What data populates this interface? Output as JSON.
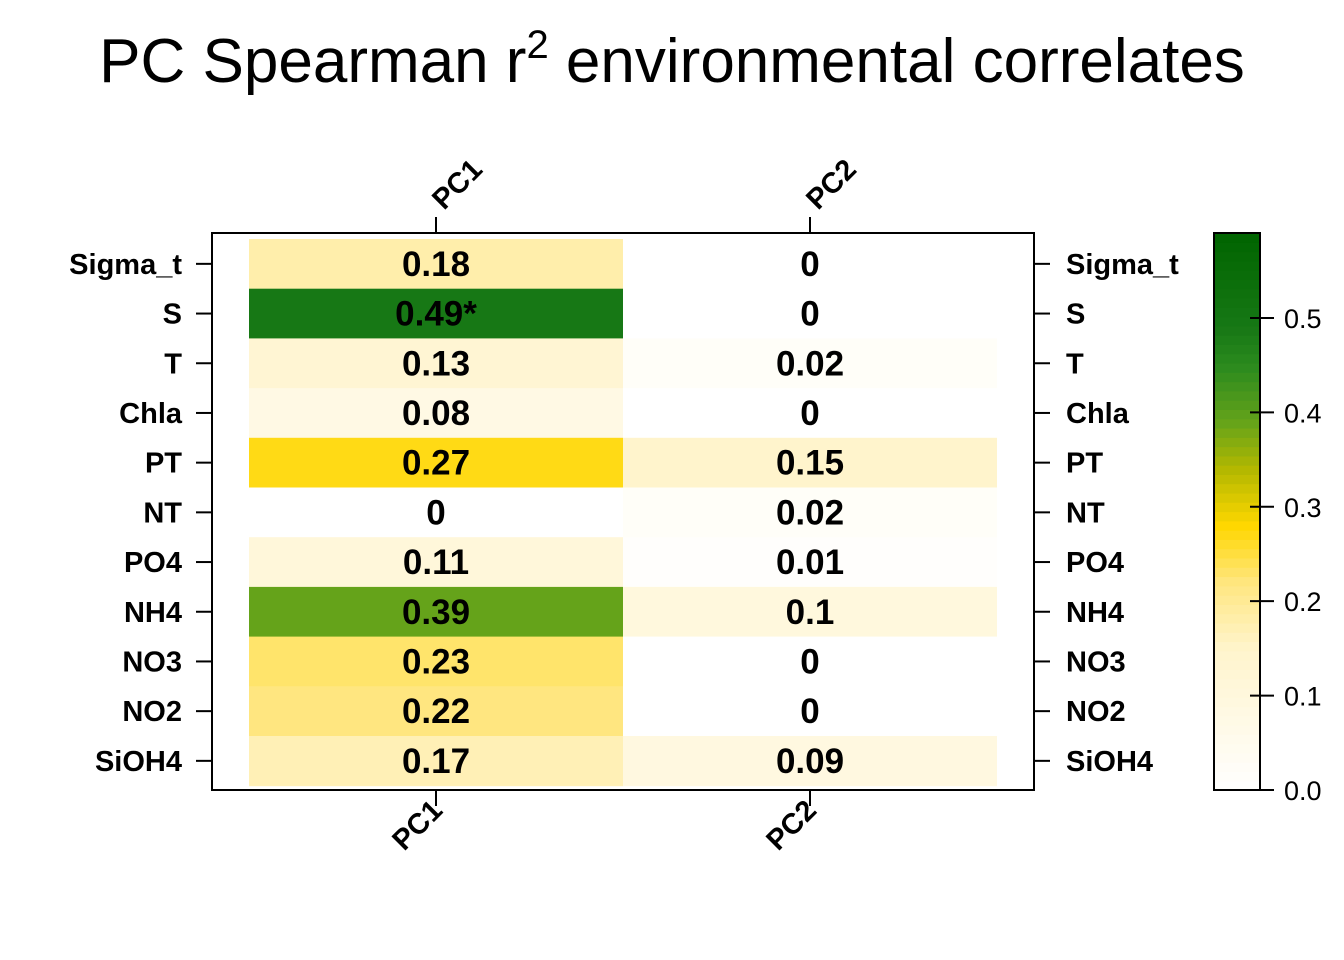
{
  "chart_data": {
    "type": "heatmap",
    "title": "PC Spearman r",
    "title_superscript": "2",
    "title_suffix": " environmental correlates",
    "columns": [
      "PC1",
      "PC2"
    ],
    "rows": [
      "Sigma_t",
      "S",
      "T",
      "Chla",
      "PT",
      "NT",
      "PO4",
      "NH4",
      "NO3",
      "NO2",
      "SiOH4"
    ],
    "values": [
      [
        0.18,
        0
      ],
      [
        0.49,
        0
      ],
      [
        0.13,
        0.02
      ],
      [
        0.08,
        0
      ],
      [
        0.27,
        0.15
      ],
      [
        0,
        0.02
      ],
      [
        0.11,
        0.01
      ],
      [
        0.39,
        0.1
      ],
      [
        0.23,
        0
      ],
      [
        0.22,
        0
      ],
      [
        0.17,
        0.09
      ]
    ],
    "cell_labels": [
      [
        "0.18",
        "0"
      ],
      [
        "0.49*",
        "0"
      ],
      [
        "0.13",
        "0.02"
      ],
      [
        "0.08",
        "0"
      ],
      [
        "0.27",
        "0.15"
      ],
      [
        "0",
        "0.02"
      ],
      [
        "0.11",
        "0.01"
      ],
      [
        "0.39",
        "0.1"
      ],
      [
        "0.23",
        "0"
      ],
      [
        "0.22",
        "0"
      ],
      [
        "0.17",
        "0.09"
      ]
    ],
    "colorscale": {
      "range": [
        0,
        0.59
      ],
      "ticks": [
        "0.0",
        "0.1",
        "0.2",
        "0.3",
        "0.4",
        "0.5"
      ],
      "tick_values": [
        0,
        0.1,
        0.2,
        0.3,
        0.4,
        0.5
      ],
      "stops": [
        {
          "value": 0.0,
          "color": "#ffffff"
        },
        {
          "value": 0.15,
          "color": "#fff4cc"
        },
        {
          "value": 0.22,
          "color": "#ffe680"
        },
        {
          "value": 0.28,
          "color": "#ffd700"
        },
        {
          "value": 0.34,
          "color": "#b3b800"
        },
        {
          "value": 0.39,
          "color": "#65a31a"
        },
        {
          "value": 0.45,
          "color": "#2a8a1e"
        },
        {
          "value": 0.49,
          "color": "#177815"
        },
        {
          "value": 0.59,
          "color": "#006400"
        }
      ]
    },
    "legend_position": "right",
    "grid": false
  }
}
